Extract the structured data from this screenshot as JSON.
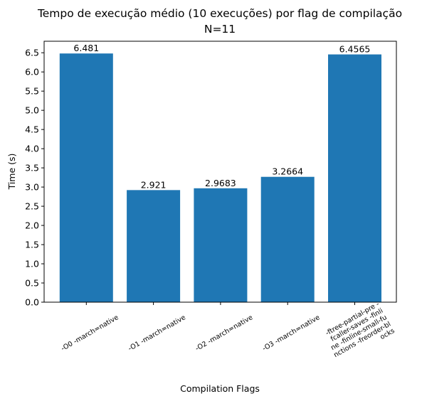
{
  "chart_data": {
    "type": "bar",
    "title": "Tempo de execução médio (10 execuções) por flag de compilação",
    "subtitle": "N=11",
    "xlabel": "Compilation Flags",
    "ylabel": "Time (s)",
    "categories": [
      [
        "-O0 -march=native"
      ],
      [
        "-O1 -march=native"
      ],
      [
        "-O2 -march=native"
      ],
      [
        "-O3 -march=native"
      ],
      [
        "-ftree-partial-pre -",
        "fcaller-saves -finli",
        "ne -finline-small-fu",
        "nctions -freorder-bl",
        "ocks"
      ]
    ],
    "values": [
      6.481,
      2.921,
      2.9683,
      3.2664,
      6.4565
    ],
    "value_labels": [
      "6.481",
      "2.921",
      "2.9683",
      "3.2664",
      "6.4565"
    ],
    "yticks": [
      "0.0",
      "0.5",
      "1.0",
      "1.5",
      "2.0",
      "2.5",
      "3.0",
      "3.5",
      "4.0",
      "4.5",
      "5.0",
      "5.5",
      "6.0",
      "6.5"
    ],
    "ylim": [
      0,
      6.8
    ],
    "bar_color": "#1f77b4",
    "grid": false,
    "legend": "none"
  }
}
